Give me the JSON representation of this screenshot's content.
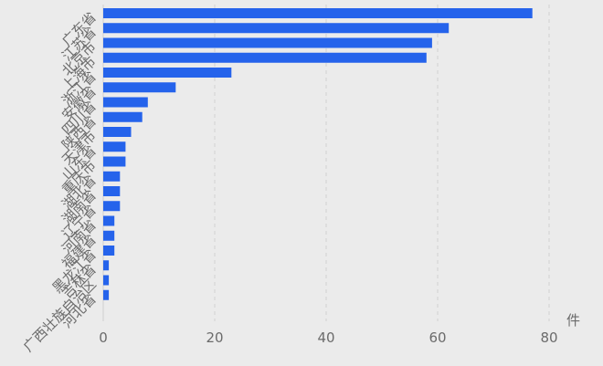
{
  "chart_data": {
    "type": "bar",
    "orientation": "horizontal",
    "categories": [
      "广东省",
      "江苏省",
      "北京市",
      "上海市",
      "浙江省",
      "安徽省",
      "四川省",
      "陕西省",
      "天津市",
      "山东省",
      "重庆市",
      "湖北省",
      "湖南省",
      "辽宁省",
      "河南省",
      "福建省",
      "黑龙江省",
      "吉林省",
      "广西壮族自治区",
      "河北省"
    ],
    "values": [
      77,
      62,
      59,
      58,
      23,
      13,
      8,
      7,
      5,
      4,
      4,
      3,
      3,
      3,
      2,
      2,
      2,
      1,
      1,
      1
    ],
    "xticks": [
      "0",
      "20",
      "40",
      "60",
      "80"
    ],
    "xlim": [
      0,
      85
    ],
    "unit": "件",
    "grid": "vertical dashed",
    "bar_color": "#2563eb",
    "title": "",
    "xlabel": "",
    "ylabel": ""
  }
}
